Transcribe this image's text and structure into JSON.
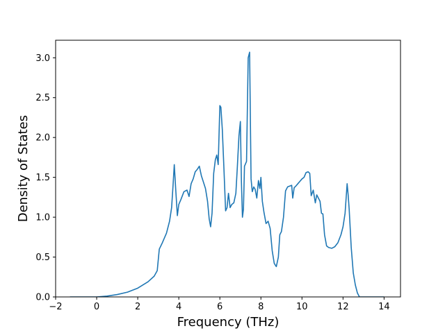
{
  "chart_data": {
    "type": "line",
    "title": "",
    "xlabel": "Frequency (THz)",
    "ylabel": "Density of States",
    "xlim": [
      -2,
      14.8
    ],
    "ylim": [
      0,
      3.22
    ],
    "xticks": [
      -2,
      0,
      2,
      4,
      6,
      8,
      10,
      12,
      14
    ],
    "xtick_labels": [
      "−2",
      "0",
      "2",
      "4",
      "6",
      "8",
      "10",
      "12",
      "14"
    ],
    "yticks": [
      0,
      0.5,
      1,
      1.5,
      2,
      2.5,
      3
    ],
    "ytick_labels": [
      "0.0",
      "0.5",
      "1.0",
      "1.5",
      "2.0",
      "2.5",
      "3.0"
    ],
    "grid": false,
    "legend": false,
    "line_color": "#1f77b4",
    "series": [
      {
        "x": [
          -1.3,
          -1.0,
          -0.5,
          0.0,
          0.5,
          1.0,
          1.5,
          2.0,
          2.5,
          2.8,
          2.95,
          3.05,
          3.2,
          3.4,
          3.55,
          3.65,
          3.72,
          3.78,
          3.85,
          3.93,
          4.0,
          4.1,
          4.25,
          4.4,
          4.5,
          4.6,
          4.7,
          4.8,
          4.9,
          5.0,
          5.1,
          5.2,
          5.3,
          5.4,
          5.48,
          5.55,
          5.62,
          5.7,
          5.78,
          5.85,
          5.92,
          6.0,
          6.05,
          6.12,
          6.2,
          6.28,
          6.35,
          6.42,
          6.5,
          6.58,
          6.68,
          6.78,
          6.85,
          6.93,
          7.0,
          7.05,
          7.1,
          7.15,
          7.2,
          7.3,
          7.38,
          7.45,
          7.52,
          7.58,
          7.65,
          7.72,
          7.8,
          7.88,
          7.95,
          8.0,
          8.07,
          8.15,
          8.25,
          8.35,
          8.45,
          8.55,
          8.65,
          8.75,
          8.85,
          8.92,
          9.0,
          9.1,
          9.2,
          9.3,
          9.4,
          9.5,
          9.55,
          9.62,
          9.7,
          9.8,
          9.9,
          10.0,
          10.1,
          10.2,
          10.3,
          10.38,
          10.45,
          10.55,
          10.65,
          10.72,
          10.8,
          10.88,
          10.95,
          11.02,
          11.1,
          11.2,
          11.3,
          11.45,
          11.6,
          11.75,
          11.9,
          12.0,
          12.1,
          12.2,
          12.25,
          12.3,
          12.4,
          12.5,
          12.6,
          12.7,
          12.8,
          13.0,
          13.5,
          14.0
        ],
        "y": [
          0.0,
          0.0,
          0.0,
          0.0,
          0.01,
          0.03,
          0.06,
          0.11,
          0.19,
          0.26,
          0.33,
          0.6,
          0.68,
          0.8,
          0.95,
          1.12,
          1.4,
          1.66,
          1.35,
          1.02,
          1.16,
          1.22,
          1.32,
          1.34,
          1.26,
          1.42,
          1.48,
          1.57,
          1.6,
          1.64,
          1.52,
          1.44,
          1.36,
          1.2,
          0.98,
          0.88,
          1.05,
          1.55,
          1.72,
          1.78,
          1.66,
          2.4,
          2.38,
          2.1,
          1.6,
          1.08,
          1.12,
          1.3,
          1.12,
          1.16,
          1.18,
          1.3,
          1.62,
          2.02,
          2.2,
          1.45,
          1.0,
          1.1,
          1.64,
          1.7,
          3.0,
          3.07,
          1.48,
          1.32,
          1.38,
          1.35,
          1.24,
          1.46,
          1.36,
          1.5,
          1.2,
          1.06,
          0.92,
          0.95,
          0.86,
          0.58,
          0.42,
          0.38,
          0.5,
          0.78,
          0.82,
          1.0,
          1.33,
          1.38,
          1.39,
          1.4,
          1.24,
          1.37,
          1.39,
          1.42,
          1.45,
          1.48,
          1.5,
          1.56,
          1.57,
          1.55,
          1.27,
          1.34,
          1.18,
          1.28,
          1.24,
          1.2,
          1.05,
          1.04,
          0.78,
          0.64,
          0.62,
          0.61,
          0.63,
          0.68,
          0.78,
          0.88,
          1.05,
          1.42,
          1.28,
          1.1,
          0.62,
          0.3,
          0.15,
          0.05,
          0.0,
          0.0,
          0.0,
          0.0
        ]
      }
    ]
  }
}
